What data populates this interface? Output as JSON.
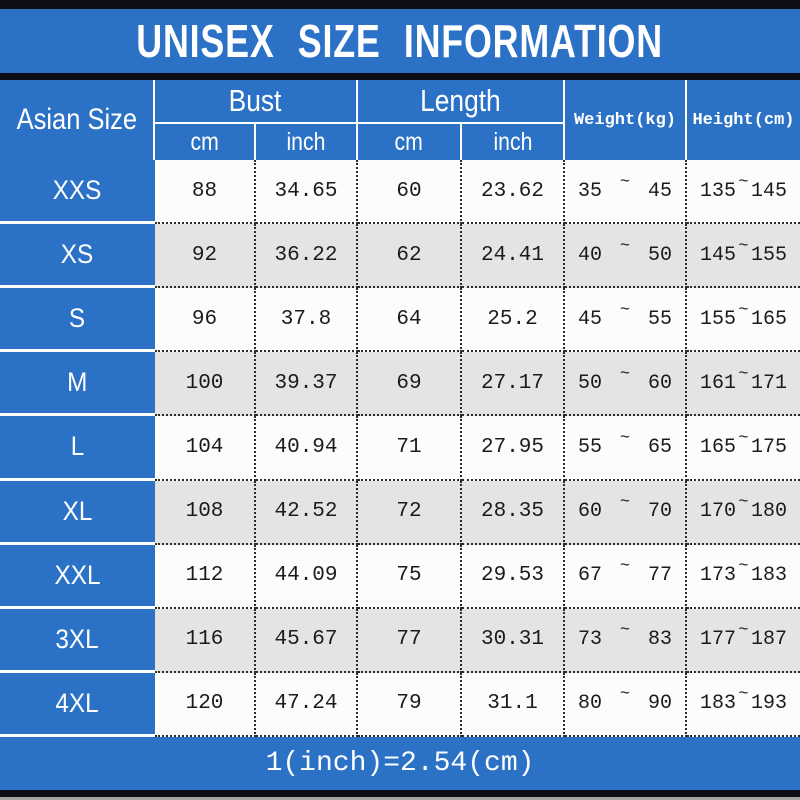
{
  "title": "UNISEX SIZE INFORMATION",
  "footer_note": "1(inch)=2.54(cm)",
  "tilde": "~",
  "header": {
    "size_col": "Asian Size",
    "bust_label": "Bust",
    "length_label": "Length",
    "cm_label": "cm",
    "inch_label": "inch",
    "weight_label": "Weight(kg)",
    "height_label": "Height(cm)"
  },
  "colors": {
    "blue": "#2b72c6",
    "bar_black": "#0d0d15",
    "row_white": "#fcfcfc",
    "row_gray": "#e5e4e2",
    "dotted_border": "#2b2b2b",
    "text_dark": "#1b1b1b",
    "text_white": "#ffffff"
  },
  "rows": [
    {
      "size": "XXS",
      "bust_cm": "88",
      "bust_inch": "34.65",
      "length_cm": "60",
      "length_inch": "23.62",
      "weight_min": "35",
      "weight_max": "45",
      "height_min": "135",
      "height_max": "145"
    },
    {
      "size": "XS",
      "bust_cm": "92",
      "bust_inch": "36.22",
      "length_cm": "62",
      "length_inch": "24.41",
      "weight_min": "40",
      "weight_max": "50",
      "height_min": "145",
      "height_max": "155"
    },
    {
      "size": "S",
      "bust_cm": "96",
      "bust_inch": "37.8",
      "length_cm": "64",
      "length_inch": "25.2",
      "weight_min": "45",
      "weight_max": "55",
      "height_min": "155",
      "height_max": "165"
    },
    {
      "size": "M",
      "bust_cm": "100",
      "bust_inch": "39.37",
      "length_cm": "69",
      "length_inch": "27.17",
      "weight_min": "50",
      "weight_max": "60",
      "height_min": "161",
      "height_max": "171"
    },
    {
      "size": "L",
      "bust_cm": "104",
      "bust_inch": "40.94",
      "length_cm": "71",
      "length_inch": "27.95",
      "weight_min": "55",
      "weight_max": "65",
      "height_min": "165",
      "height_max": "175"
    },
    {
      "size": "XL",
      "bust_cm": "108",
      "bust_inch": "42.52",
      "length_cm": "72",
      "length_inch": "28.35",
      "weight_min": "60",
      "weight_max": "70",
      "height_min": "170",
      "height_max": "180"
    },
    {
      "size": "XXL",
      "bust_cm": "112",
      "bust_inch": "44.09",
      "length_cm": "75",
      "length_inch": "29.53",
      "weight_min": "67",
      "weight_max": "77",
      "height_min": "173",
      "height_max": "183"
    },
    {
      "size": "3XL",
      "bust_cm": "116",
      "bust_inch": "45.67",
      "length_cm": "77",
      "length_inch": "30.31",
      "weight_min": "73",
      "weight_max": "83",
      "height_min": "177",
      "height_max": "187"
    },
    {
      "size": "4XL",
      "bust_cm": "120",
      "bust_inch": "47.24",
      "length_cm": "79",
      "length_inch": "31.1",
      "weight_min": "80",
      "weight_max": "90",
      "height_min": "183",
      "height_max": "193"
    }
  ],
  "chart_data": {
    "type": "table",
    "title": "UNISEX SIZE INFORMATION",
    "columns": [
      "Asian Size",
      "Bust (cm)",
      "Bust (inch)",
      "Length (cm)",
      "Length (inch)",
      "Weight(kg)",
      "Height(cm)"
    ],
    "rows": [
      [
        "XXS",
        "88",
        "34.65",
        "60",
        "23.62",
        "35~45",
        "135~145"
      ],
      [
        "XS",
        "92",
        "36.22",
        "62",
        "24.41",
        "40~50",
        "145~155"
      ],
      [
        "S",
        "96",
        "37.8",
        "64",
        "25.2",
        "45~55",
        "155~165"
      ],
      [
        "M",
        "100",
        "39.37",
        "69",
        "27.17",
        "50~60",
        "161~171"
      ],
      [
        "L",
        "104",
        "40.94",
        "71",
        "27.95",
        "55~65",
        "165~175"
      ],
      [
        "XL",
        "108",
        "42.52",
        "72",
        "28.35",
        "60~70",
        "170~180"
      ],
      [
        "XXL",
        "112",
        "44.09",
        "75",
        "29.53",
        "67~77",
        "173~183"
      ],
      [
        "3XL",
        "116",
        "45.67",
        "77",
        "30.31",
        "73~83",
        "177~187"
      ],
      [
        "4XL",
        "120",
        "47.24",
        "79",
        "31.1",
        "80~90",
        "183~193"
      ]
    ],
    "footer": "1(inch)=2.54(cm)"
  }
}
